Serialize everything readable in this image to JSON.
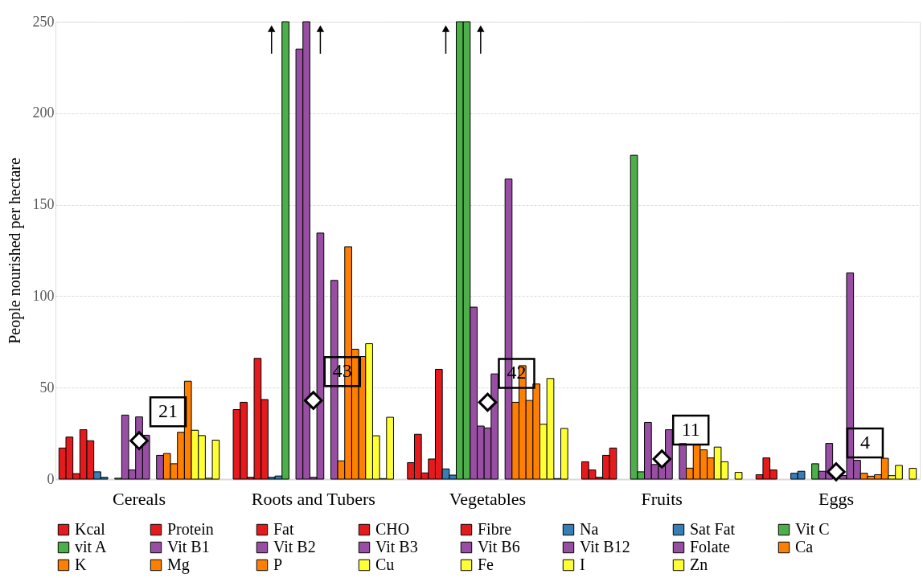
{
  "chart_data": {
    "type": "bar",
    "ylabel": "People nourished per hectare",
    "categories": [
      "Cereals",
      "Roots and Tubers",
      "Vegetables",
      "Fruits",
      "Eggs"
    ],
    "ylim": [
      0,
      250
    ],
    "yticks": [
      0,
      50,
      100,
      150,
      200,
      250
    ],
    "grid": "y",
    "legend": "bottom",
    "series": [
      {
        "name": "Kcal",
        "color": "#e41a1c",
        "values": [
          17,
          38,
          9,
          9.5,
          2.4
        ]
      },
      {
        "name": "Protein",
        "color": "#e41a1c",
        "values": [
          23,
          42,
          24.5,
          5,
          11.6
        ]
      },
      {
        "name": "Fat",
        "color": "#e41a1c",
        "values": [
          3,
          1,
          3.4,
          1,
          5
        ]
      },
      {
        "name": "CHO",
        "color": "#e41a1c",
        "values": [
          27,
          66,
          11,
          13,
          null
        ]
      },
      {
        "name": "Fibre",
        "color": "#e41a1c",
        "values": [
          21,
          43.5,
          60,
          17,
          null
        ]
      },
      {
        "name": "Na",
        "color": "#377eb8",
        "values": [
          4,
          1,
          5.6,
          null,
          3.2
        ]
      },
      {
        "name": "Sat Fat",
        "color": "#377eb8",
        "values": [
          1,
          1.7,
          2.2,
          null,
          4.3
        ]
      },
      {
        "name": "Vit C",
        "color": "#4daf4a",
        "values": [
          null,
          250,
          250,
          177,
          null
        ]
      },
      {
        "name": "vit A",
        "color": "#4daf4a",
        "values": [
          0.5,
          null,
          250,
          4,
          8.4
        ]
      },
      {
        "name": "Vit B1",
        "color": "#984ea3",
        "values": [
          35,
          235,
          94,
          31,
          4.3
        ]
      },
      {
        "name": "Vit B2",
        "color": "#984ea3",
        "values": [
          5,
          250,
          29,
          8,
          19.5
        ]
      },
      {
        "name": "Vit B3",
        "color": "#984ea3",
        "values": [
          34,
          1,
          28,
          7,
          null
        ]
      },
      {
        "name": "Vit B6",
        "color": "#984ea3",
        "values": [
          24,
          134.5,
          57.5,
          27,
          2
        ]
      },
      {
        "name": "Vit B12",
        "color": "#984ea3",
        "values": [
          null,
          null,
          null,
          null,
          112.7
        ]
      },
      {
        "name": "Folate",
        "color": "#984ea3",
        "values": [
          13,
          108.6,
          164,
          19.4,
          10.3
        ]
      },
      {
        "name": "Ca",
        "color": "#ff7f00",
        "values": [
          14,
          10,
          42,
          6,
          3.2
        ]
      },
      {
        "name": "K",
        "color": "#ff7f00",
        "values": [
          8.4,
          127,
          62,
          18.7,
          1.6
        ]
      },
      {
        "name": "Mg",
        "color": "#ff7f00",
        "values": [
          25.6,
          71,
          43,
          16,
          2.4
        ]
      },
      {
        "name": "P",
        "color": "#ff7f00",
        "values": [
          53.5,
          67,
          52,
          11.6,
          11.4
        ]
      },
      {
        "name": "Cu",
        "color": "#ffff33",
        "values": [
          26.7,
          74,
          30,
          17.5,
          1.9
        ]
      },
      {
        "name": "Fe",
        "color": "#ffff33",
        "values": [
          23.8,
          23.7,
          55,
          9.5,
          7.5
        ]
      },
      {
        "name": "I",
        "color": "#ffff33",
        "values": [
          0.5,
          0.3,
          0.3,
          null,
          null
        ]
      },
      {
        "name": "Zn",
        "color": "#ffff33",
        "values": [
          21.3,
          33.8,
          27.7,
          3.7,
          5.9
        ]
      },
      {
        "type": "scatter",
        "marker": "diamond",
        "color": "#ffffff",
        "values": [
          21,
          43,
          42,
          11,
          4
        ],
        "value_labels": [
          "21",
          "43",
          "42",
          "11",
          "4"
        ]
      }
    ]
  }
}
